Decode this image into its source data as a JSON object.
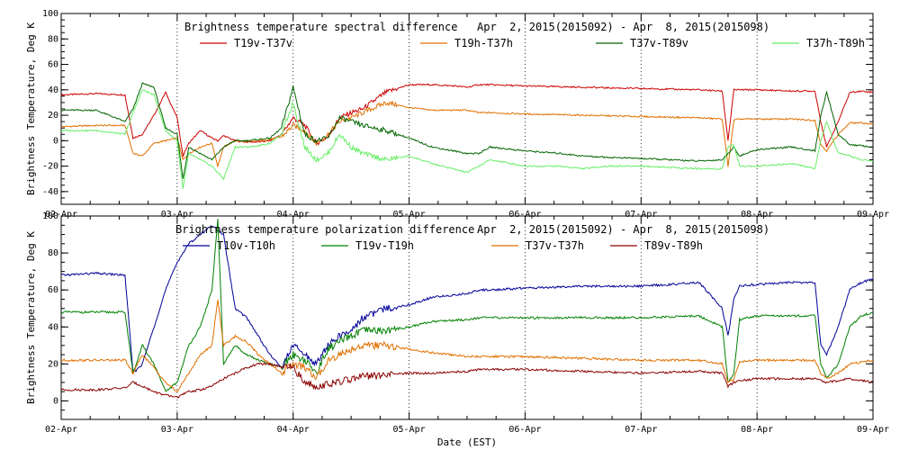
{
  "chart_data": [
    {
      "type": "line",
      "title": "Brightness temperature spectral difference",
      "date_range": "Apr  2, 2015(2015092) - Apr  8, 2015(2015098)",
      "ylabel": "Brightness Temperature, Deg K",
      "xlabel": "",
      "ylim": [
        -50,
        100
      ],
      "xlim": [
        0,
        7
      ],
      "yticks": [
        -40,
        -20,
        0,
        20,
        40,
        60,
        80,
        100
      ],
      "xticks": [
        "02-Apr",
        "03-Apr",
        "04-Apr",
        "05-Apr",
        "06-Apr",
        "07-Apr",
        "08-Apr",
        "09-Apr"
      ],
      "grid": "vertical dotted at day boundaries",
      "series": [
        {
          "name": "T19v-T37v",
          "color": "#cc0000",
          "x": [
            0,
            0.3,
            0.55,
            0.62,
            0.7,
            0.8,
            0.9,
            1.0,
            1.05,
            1.1,
            1.2,
            1.3,
            1.35,
            1.4,
            1.5,
            1.6,
            1.7,
            1.8,
            1.9,
            2.0,
            2.1,
            2.2,
            2.3,
            2.4,
            2.5,
            2.6,
            2.8,
            3.0,
            3.2,
            3.4,
            3.5,
            3.6,
            3.7,
            4.0,
            4.5,
            5.0,
            5.5,
            5.7,
            5.75,
            5.8,
            5.85,
            6.0,
            6.3,
            6.5,
            6.55,
            6.6,
            6.7,
            6.8,
            6.9,
            7.0
          ],
          "y": [
            36,
            37,
            36,
            2,
            5,
            20,
            38,
            18,
            -12,
            -2,
            8,
            2,
            0,
            4,
            0,
            -1,
            -1,
            0,
            5,
            18,
            12,
            -2,
            3,
            18,
            22,
            25,
            38,
            44,
            44,
            43,
            42,
            44,
            44,
            43,
            42,
            41,
            40,
            39,
            0,
            40,
            40,
            40,
            39,
            39,
            15,
            -5,
            15,
            38,
            39,
            38
          ]
        },
        {
          "name": "T19h-T37h",
          "color": "#e07000",
          "x": [
            0,
            0.3,
            0.55,
            0.62,
            0.7,
            0.8,
            0.9,
            1.0,
            1.05,
            1.1,
            1.2,
            1.3,
            1.35,
            1.4,
            1.5,
            1.6,
            1.7,
            1.8,
            1.9,
            2.0,
            2.1,
            2.2,
            2.3,
            2.4,
            2.5,
            2.6,
            2.8,
            3.0,
            3.2,
            3.5,
            3.6,
            3.7,
            4.0,
            4.5,
            5.0,
            5.5,
            5.7,
            5.75,
            5.8,
            5.85,
            6.0,
            6.3,
            6.5,
            6.55,
            6.6,
            6.7,
            6.8,
            6.9,
            7.0
          ],
          "y": [
            11,
            12,
            12,
            -10,
            -12,
            -2,
            0,
            2,
            -15,
            -10,
            -5,
            -2,
            -20,
            -5,
            0,
            -1,
            0,
            1,
            3,
            12,
            8,
            -2,
            5,
            15,
            18,
            22,
            30,
            26,
            24,
            24,
            22,
            22,
            21,
            20,
            19,
            18,
            17,
            -20,
            16,
            17,
            17,
            17,
            16,
            -3,
            -8,
            5,
            14,
            14,
            13
          ]
        },
        {
          "name": "T37v-T89v",
          "color": "#006400",
          "x": [
            0,
            0.3,
            0.55,
            0.62,
            0.7,
            0.8,
            0.9,
            1.0,
            1.05,
            1.1,
            1.2,
            1.3,
            1.4,
            1.5,
            1.6,
            1.7,
            1.8,
            1.9,
            2.0,
            2.1,
            2.2,
            2.3,
            2.4,
            2.5,
            2.6,
            2.8,
            3.0,
            3.2,
            3.5,
            3.6,
            3.7,
            4.0,
            4.3,
            4.5,
            4.7,
            5.0,
            5.5,
            5.7,
            5.75,
            5.8,
            5.85,
            6.0,
            6.3,
            6.5,
            6.55,
            6.6,
            6.7,
            6.8,
            6.9,
            7.0
          ],
          "y": [
            24,
            24,
            15,
            25,
            45,
            42,
            10,
            5,
            -30,
            -5,
            -10,
            -15,
            -5,
            0,
            0,
            1,
            2,
            10,
            42,
            5,
            0,
            2,
            18,
            15,
            12,
            8,
            2,
            -5,
            -10,
            -10,
            -5,
            -8,
            -10,
            -12,
            -13,
            -14,
            -16,
            -15,
            -10,
            -5,
            -12,
            -7,
            -5,
            -8,
            20,
            38,
            5,
            -3,
            -4,
            -5
          ]
        },
        {
          "name": "T37h-T89h",
          "color": "#66ee66",
          "x": [
            0,
            0.3,
            0.55,
            0.62,
            0.7,
            0.8,
            0.9,
            1.0,
            1.05,
            1.1,
            1.2,
            1.3,
            1.4,
            1.5,
            1.6,
            1.7,
            1.8,
            1.9,
            2.0,
            2.1,
            2.2,
            2.3,
            2.4,
            2.5,
            2.6,
            2.8,
            3.0,
            3.2,
            3.5,
            3.6,
            3.7,
            4.0,
            4.3,
            4.5,
            4.7,
            5.0,
            5.5,
            5.7,
            5.75,
            5.8,
            5.85,
            6.0,
            6.3,
            6.5,
            6.55,
            6.6,
            6.7,
            6.8,
            6.9,
            7.0
          ],
          "y": [
            8,
            8,
            5,
            22,
            40,
            36,
            8,
            0,
            -38,
            -10,
            -15,
            -20,
            -30,
            -5,
            -5,
            -4,
            -2,
            5,
            30,
            -5,
            -15,
            -10,
            5,
            -5,
            -10,
            -15,
            -12,
            -18,
            -25,
            -20,
            -15,
            -20,
            -20,
            -22,
            -20,
            -20,
            -22,
            -22,
            -5,
            -3,
            -20,
            -20,
            -18,
            -22,
            0,
            15,
            -10,
            -12,
            -15,
            -16
          ]
        }
      ]
    },
    {
      "type": "line",
      "title": "Brightness temperature polarization difference",
      "date_range": "Apr  2, 2015(2015092) - Apr  8, 2015(2015098)",
      "ylabel": "Brightness Temperature, Deg K",
      "xlabel": "Date (EST)",
      "ylim": [
        -10,
        100
      ],
      "xlim": [
        0,
        7
      ],
      "yticks": [
        0,
        20,
        40,
        60,
        80,
        100
      ],
      "xticks": [
        "02-Apr",
        "03-Apr",
        "04-Apr",
        "05-Apr",
        "06-Apr",
        "07-Apr",
        "08-Apr",
        "09-Apr"
      ],
      "grid": "vertical dotted at day boundaries",
      "series": [
        {
          "name": "T10v-T10h",
          "color": "#000099",
          "x": [
            0,
            0.3,
            0.55,
            0.62,
            0.7,
            0.8,
            0.9,
            1.0,
            1.1,
            1.2,
            1.3,
            1.35,
            1.4,
            1.5,
            1.6,
            1.7,
            1.8,
            1.9,
            2.0,
            2.1,
            2.2,
            2.3,
            2.4,
            2.5,
            2.6,
            2.8,
            3.0,
            3.2,
            3.5,
            3.6,
            3.7,
            4.0,
            4.5,
            5.0,
            5.5,
            5.7,
            5.75,
            5.8,
            5.85,
            6.0,
            6.3,
            6.5,
            6.55,
            6.6,
            6.7,
            6.8,
            6.9,
            7.0
          ],
          "y": [
            68,
            69,
            68,
            15,
            20,
            40,
            60,
            75,
            85,
            90,
            95,
            92,
            90,
            50,
            45,
            35,
            25,
            18,
            30,
            25,
            20,
            30,
            35,
            38,
            45,
            50,
            52,
            56,
            58,
            60,
            60,
            61,
            62,
            62,
            64,
            50,
            35,
            55,
            62,
            63,
            64,
            64,
            30,
            25,
            40,
            60,
            64,
            66
          ]
        },
        {
          "name": "T19v-T19h",
          "color": "#008000",
          "x": [
            0,
            0.3,
            0.55,
            0.62,
            0.7,
            0.8,
            0.9,
            1.0,
            1.1,
            1.2,
            1.3,
            1.35,
            1.4,
            1.5,
            1.6,
            1.7,
            1.8,
            1.9,
            2.0,
            2.1,
            2.2,
            2.3,
            2.4,
            2.5,
            2.6,
            2.8,
            3.0,
            3.2,
            3.5,
            3.6,
            3.7,
            4.0,
            4.5,
            5.0,
            5.5,
            5.7,
            5.75,
            5.8,
            5.85,
            6.0,
            6.3,
            6.5,
            6.55,
            6.6,
            6.7,
            6.8,
            6.9,
            7.0
          ],
          "y": [
            48,
            48,
            48,
            15,
            30,
            20,
            5,
            10,
            30,
            40,
            60,
            98,
            20,
            30,
            25,
            22,
            20,
            18,
            25,
            22,
            15,
            28,
            32,
            35,
            38,
            38,
            40,
            43,
            44,
            45,
            45,
            45,
            45,
            45,
            46,
            40,
            10,
            15,
            44,
            46,
            46,
            46,
            20,
            12,
            20,
            40,
            46,
            48
          ]
        },
        {
          "name": "T37v-T37h",
          "color": "#e07000",
          "x": [
            0,
            0.3,
            0.55,
            0.62,
            0.7,
            0.8,
            0.9,
            1.0,
            1.1,
            1.2,
            1.3,
            1.35,
            1.4,
            1.5,
            1.6,
            1.7,
            1.8,
            1.9,
            2.0,
            2.1,
            2.2,
            2.3,
            2.4,
            2.5,
            2.6,
            2.8,
            3.0,
            3.2,
            3.5,
            3.6,
            3.7,
            4.0,
            4.5,
            5.0,
            5.5,
            5.7,
            5.75,
            5.8,
            5.85,
            6.0,
            6.3,
            6.5,
            6.55,
            6.6,
            6.7,
            6.8,
            6.9,
            7.0
          ],
          "y": [
            22,
            22,
            22,
            15,
            25,
            18,
            10,
            5,
            15,
            25,
            30,
            55,
            30,
            35,
            32,
            25,
            20,
            15,
            20,
            18,
            12,
            22,
            25,
            28,
            30,
            30,
            28,
            26,
            24,
            24,
            24,
            24,
            23,
            22,
            22,
            20,
            10,
            12,
            21,
            22,
            22,
            22,
            15,
            12,
            15,
            20,
            21,
            22
          ]
        },
        {
          "name": "T89v-T89h",
          "color": "#8b0000",
          "x": [
            0,
            0.3,
            0.55,
            0.62,
            0.7,
            0.8,
            0.9,
            1.0,
            1.1,
            1.2,
            1.3,
            1.35,
            1.4,
            1.5,
            1.6,
            1.7,
            1.8,
            1.9,
            2.0,
            2.1,
            2.2,
            2.3,
            2.4,
            2.5,
            2.6,
            2.8,
            3.0,
            3.2,
            3.5,
            3.6,
            3.7,
            4.0,
            4.5,
            5.0,
            5.5,
            5.7,
            5.75,
            5.8,
            5.85,
            6.0,
            6.3,
            6.5,
            6.55,
            6.6,
            6.7,
            6.8,
            6.9,
            7.0
          ],
          "y": [
            6,
            6,
            7,
            10,
            8,
            5,
            3,
            2,
            5,
            6,
            8,
            10,
            12,
            15,
            18,
            20,
            20,
            18,
            18,
            10,
            8,
            9,
            10,
            12,
            13,
            14,
            15,
            15,
            16,
            17,
            17,
            17,
            16,
            15,
            16,
            15,
            8,
            10,
            11,
            12,
            12,
            12,
            11,
            10,
            11,
            12,
            11,
            10
          ]
        }
      ]
    }
  ]
}
